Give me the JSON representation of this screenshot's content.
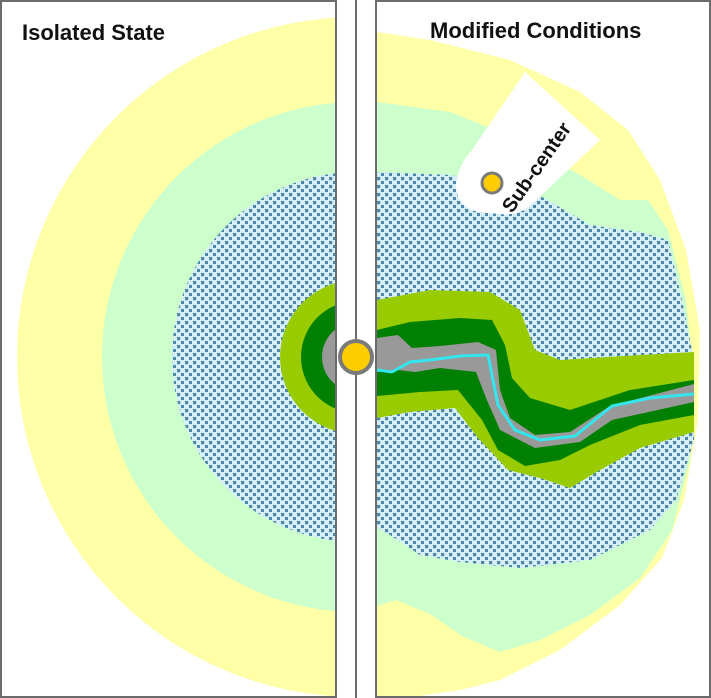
{
  "panels": {
    "left": {
      "title": "Isolated State"
    },
    "right": {
      "title": "Modified Conditions"
    }
  },
  "callout": {
    "label": "Sub-center"
  },
  "colors": {
    "background": "#ffffff",
    "frame": "#6b6b6b",
    "outer_zone": "#ffffa8",
    "middle_zone": "#ccffcc",
    "dotted_zone_base": "#d6eef8",
    "dotted_zone_dots": "#4d88aa",
    "light_green_band": "#99cc00",
    "dark_green_band": "#008000",
    "core_gray": "#999999",
    "river": "#33e6ee",
    "center_node": "#ffcc00",
    "node_outline": "#7a7a7a"
  },
  "icons": {
    "center_node": "yellow-circle",
    "sub_center_node": "yellow-circle"
  }
}
